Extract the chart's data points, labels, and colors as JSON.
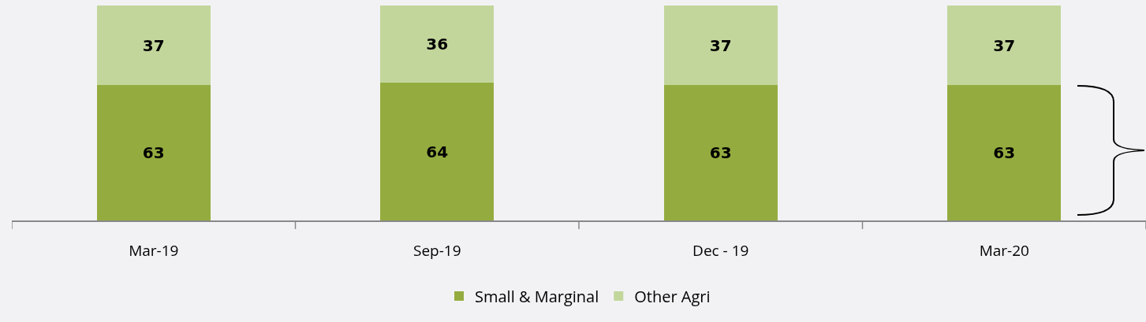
{
  "chart_data": {
    "type": "bar",
    "stacked": true,
    "categories": [
      "Mar-19",
      "Sep-19",
      "Dec - 19",
      "Mar-20"
    ],
    "series": [
      {
        "name": "Small & Marginal",
        "color": "#94ac3f",
        "values": [
          63,
          64,
          63,
          63
        ]
      },
      {
        "name": "Other Agri",
        "color": "#c2d69b",
        "values": [
          37,
          36,
          37,
          37
        ]
      }
    ],
    "ylim": [
      0,
      100
    ],
    "tick_labels": "x",
    "data_labels": true,
    "legend": "bottom",
    "grid": false
  }
}
